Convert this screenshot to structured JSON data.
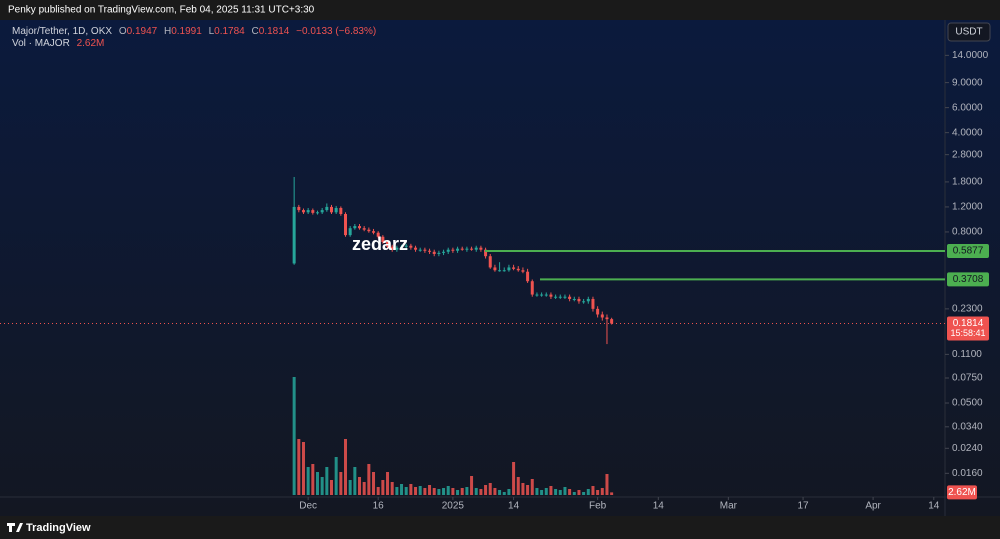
{
  "header": {
    "published": "Penky published on TradingView.com, Feb 04, 2025 11:31 UTC+3:30",
    "logo": "TradingView"
  },
  "chart_data": {
    "type": "candlestick",
    "symbol": "Major/Tether, 1D, OKX",
    "ohlc_prefixes": [
      "O",
      "H",
      "L",
      "C"
    ],
    "change": "−0.0133 (−6.83%)",
    "volume_title": "Vol · MAJOR",
    "currency": "USDT",
    "countdown": "15:58:41",
    "watermark": "zedarz",
    "up_color": "#26a69a",
    "down_color": "#ef5350",
    "log": true,
    "grid": false,
    "ylim": [
      0.0109,
      24.83
    ],
    "yticks": [
      {
        "value": 14,
        "label": "14.0000"
      },
      {
        "value": 9,
        "label": "9.0000"
      },
      {
        "value": 6,
        "label": "6.0000"
      },
      {
        "value": 4,
        "label": "4.0000"
      },
      {
        "value": 2.8,
        "label": "2.8000"
      },
      {
        "value": 1.8,
        "label": "1.8000"
      },
      {
        "value": 1.2,
        "label": "1.2000"
      },
      {
        "value": 0.8,
        "label": "0.8000"
      },
      {
        "value": 0.23,
        "label": "0.2300"
      },
      {
        "value": 0.11,
        "label": "0.1100"
      },
      {
        "value": 0.075,
        "label": "0.0750"
      },
      {
        "value": 0.05,
        "label": "0.0500"
      },
      {
        "value": 0.034,
        "label": "0.0340"
      },
      {
        "value": 0.024,
        "label": "0.0240"
      },
      {
        "value": 0.016,
        "label": "0.0160"
      }
    ],
    "xlim": [
      -63,
      139.4
    ],
    "xticks": [
      {
        "value": 3,
        "label": "Dec"
      },
      {
        "value": 18,
        "label": "16"
      },
      {
        "value": 34,
        "label": "2025"
      },
      {
        "value": 47,
        "label": "14"
      },
      {
        "value": 65,
        "label": "Feb"
      },
      {
        "value": 78,
        "label": "14"
      },
      {
        "value": 93,
        "label": "Mar"
      },
      {
        "value": 109,
        "label": "17"
      },
      {
        "value": 124,
        "label": "Apr"
      },
      {
        "value": 137,
        "label": "14"
      }
    ],
    "vol_ylim": [
      0,
      120
    ],
    "levels": [
      {
        "value": 0.5877,
        "color": "#4caf50"
      },
      {
        "value": 0.3708,
        "color": "#4caf50"
      }
    ],
    "open": [
      0.48,
      1.2,
      1.14,
      1.1,
      1.14,
      1.09,
      1.1,
      1.14,
      1.2,
      1.1,
      1.18,
      1.07,
      0.76,
      0.85,
      0.88,
      0.85,
      0.83,
      0.81,
      0.79,
      0.74,
      0.68,
      0.63,
      0.6,
      0.62,
      0.63,
      0.64,
      0.62,
      0.6,
      0.6,
      0.59,
      0.58,
      0.56,
      0.57,
      0.58,
      0.6,
      0.59,
      0.61,
      0.6,
      0.61,
      0.6,
      0.62,
      0.6,
      0.54,
      0.45,
      0.43,
      0.43,
      0.43,
      0.45,
      0.44,
      0.43,
      0.42,
      0.36,
      0.29,
      0.29,
      0.29,
      0.29,
      0.28,
      0.28,
      0.28,
      0.28,
      0.27,
      0.27,
      0.26,
      0.26,
      0.27,
      0.23,
      0.21,
      0.2,
      0.1947
    ],
    "high": [
      1.95,
      1.24,
      1.17,
      1.18,
      1.17,
      1.13,
      1.18,
      1.27,
      1.24,
      1.22,
      1.21,
      1.1,
      0.88,
      0.91,
      0.91,
      0.88,
      0.86,
      0.84,
      0.81,
      0.76,
      0.7,
      0.65,
      0.64,
      0.65,
      0.66,
      0.66,
      0.64,
      0.62,
      0.62,
      0.61,
      0.6,
      0.59,
      0.6,
      0.62,
      0.62,
      0.63,
      0.63,
      0.63,
      0.63,
      0.64,
      0.64,
      0.62,
      0.56,
      0.47,
      0.49,
      0.45,
      0.47,
      0.47,
      0.46,
      0.45,
      0.44,
      0.37,
      0.3,
      0.3,
      0.3,
      0.3,
      0.29,
      0.29,
      0.29,
      0.29,
      0.28,
      0.28,
      0.27,
      0.28,
      0.28,
      0.24,
      0.22,
      0.21,
      0.1991
    ],
    "low": [
      0.47,
      1.1,
      1.07,
      1.07,
      1.06,
      1.06,
      1.07,
      1.11,
      1.07,
      1.07,
      1.04,
      0.74,
      0.74,
      0.83,
      0.83,
      0.81,
      0.79,
      0.77,
      0.72,
      0.66,
      0.61,
      0.58,
      0.58,
      0.6,
      0.61,
      0.6,
      0.58,
      0.58,
      0.57,
      0.56,
      0.54,
      0.54,
      0.55,
      0.56,
      0.57,
      0.57,
      0.59,
      0.58,
      0.59,
      0.58,
      0.58,
      0.52,
      0.44,
      0.42,
      0.42,
      0.42,
      0.42,
      0.43,
      0.42,
      0.41,
      0.35,
      0.28,
      0.28,
      0.28,
      0.28,
      0.27,
      0.27,
      0.27,
      0.27,
      0.26,
      0.26,
      0.25,
      0.25,
      0.25,
      0.22,
      0.2,
      0.19,
      0.13,
      0.1784
    ],
    "close": [
      1.2,
      1.14,
      1.1,
      1.14,
      1.09,
      1.1,
      1.14,
      1.2,
      1.1,
      1.18,
      1.07,
      0.76,
      0.85,
      0.88,
      0.85,
      0.83,
      0.81,
      0.79,
      0.74,
      0.68,
      0.63,
      0.6,
      0.62,
      0.63,
      0.64,
      0.62,
      0.6,
      0.6,
      0.59,
      0.58,
      0.56,
      0.57,
      0.58,
      0.6,
      0.59,
      0.61,
      0.6,
      0.61,
      0.6,
      0.62,
      0.6,
      0.54,
      0.45,
      0.43,
      0.43,
      0.43,
      0.45,
      0.44,
      0.43,
      0.42,
      0.36,
      0.29,
      0.29,
      0.29,
      0.29,
      0.28,
      0.28,
      0.28,
      0.28,
      0.27,
      0.27,
      0.26,
      0.26,
      0.27,
      0.23,
      0.21,
      0.2,
      0.1947,
      0.1814
    ],
    "volume": [
      118,
      56,
      53,
      28,
      31,
      23,
      18,
      28,
      15,
      38,
      23,
      56,
      15,
      28,
      18,
      13,
      31,
      23,
      8,
      15,
      23,
      13,
      8,
      11,
      8,
      11,
      8,
      9,
      7,
      10,
      7,
      6,
      7,
      9,
      7,
      5,
      7,
      8,
      19,
      7,
      6,
      10,
      12,
      7,
      5,
      3,
      6,
      33,
      18,
      12,
      10,
      16,
      7,
      5,
      7,
      9,
      6,
      5,
      8,
      6,
      3,
      5,
      3,
      6,
      9,
      5,
      7,
      21,
      2.62
    ],
    "volume_value_labels": [
      null,
      null,
      null,
      null,
      null,
      null,
      null,
      null,
      null,
      null,
      null,
      null,
      null,
      null,
      null,
      null,
      null,
      null,
      null,
      null,
      null,
      null,
      null,
      null,
      null,
      null,
      null,
      null,
      null,
      null,
      null,
      null,
      null,
      null,
      null,
      null,
      null,
      null,
      null,
      null,
      null,
      null,
      null,
      null,
      null,
      null,
      null,
      null,
      null,
      null,
      null,
      null,
      null,
      null,
      null,
      null,
      null,
      null,
      null,
      null,
      null,
      null,
      null,
      null,
      null,
      null,
      null,
      null,
      "2.62M"
    ]
  }
}
